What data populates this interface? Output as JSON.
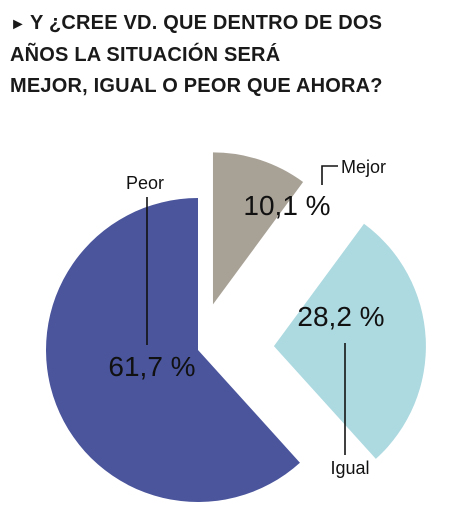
{
  "title": {
    "marker": "►",
    "line1": "Y ¿CREE VD. QUE DENTRO DE DOS",
    "line2": "AÑOS LA SITUACIÓN SERÁ",
    "line3": "MEJOR, IGUAL O PEOR QUE AHORA?"
  },
  "chart_data": {
    "type": "pie",
    "title": "Y ¿CREE VD. QUE DENTRO DE DOS AÑOS LA SITUACIÓN SERÁ MEJOR, IGUAL O PEOR QUE AHORA?",
    "categories": [
      "Mejor",
      "Igual",
      "Peor"
    ],
    "values": [
      10.1,
      28.2,
      61.7
    ],
    "value_labels": [
      "10,1 %",
      "28,2 %",
      "61,7 %"
    ],
    "colors": [
      "#a8a196",
      "#add9e0",
      "#4a559c"
    ],
    "exploded": true,
    "legend": "none"
  }
}
